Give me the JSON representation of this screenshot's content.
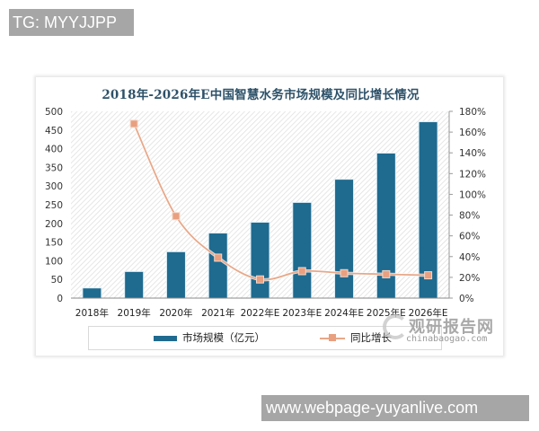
{
  "watermarks": {
    "top": "TG: MYYJJPP",
    "bottom": "www.webpage-yuyanlive.com"
  },
  "logo": {
    "name": "观研报告网",
    "url_text": "chinabaogao.com"
  },
  "colors": {
    "bar": "#1f6a8f",
    "line": "#e8a889",
    "marker": "#e8a080",
    "title": "#2d5168"
  },
  "chart_data": {
    "type": "bar",
    "title": "2018年-2026年E中国智慧水务市场规模及同比增长情况",
    "categories": [
      "2018年",
      "2019年",
      "2020年",
      "2021年",
      "2022年E",
      "2023年E",
      "2024年E",
      "2025年E",
      "2026年E"
    ],
    "series": [
      {
        "name": "市场规模（亿元）",
        "type": "bar",
        "axis": "left",
        "values": [
          26,
          70,
          123,
          173,
          202,
          255,
          317,
          387,
          471
        ]
      },
      {
        "name": "同比增长",
        "type": "line",
        "axis": "right",
        "values": [
          null,
          168,
          79,
          39,
          18,
          26,
          24,
          23,
          22
        ],
        "unit": "%"
      }
    ],
    "left_axis": {
      "ylim": [
        0,
        500
      ],
      "ticks": [
        "0",
        "50",
        "100",
        "150",
        "200",
        "250",
        "300",
        "350",
        "400",
        "450",
        "500"
      ]
    },
    "right_axis": {
      "ylim": [
        0,
        180
      ],
      "ticks": [
        "0%",
        "20%",
        "40%",
        "60%",
        "80%",
        "100%",
        "120%",
        "140%",
        "160%",
        "180%"
      ]
    },
    "xlabel": "",
    "ylabel": "",
    "grid": false,
    "background": "diagonal hatch",
    "legend": {
      "position": "bottom",
      "entries": [
        "市场规模（亿元）",
        "同比增长"
      ]
    }
  }
}
